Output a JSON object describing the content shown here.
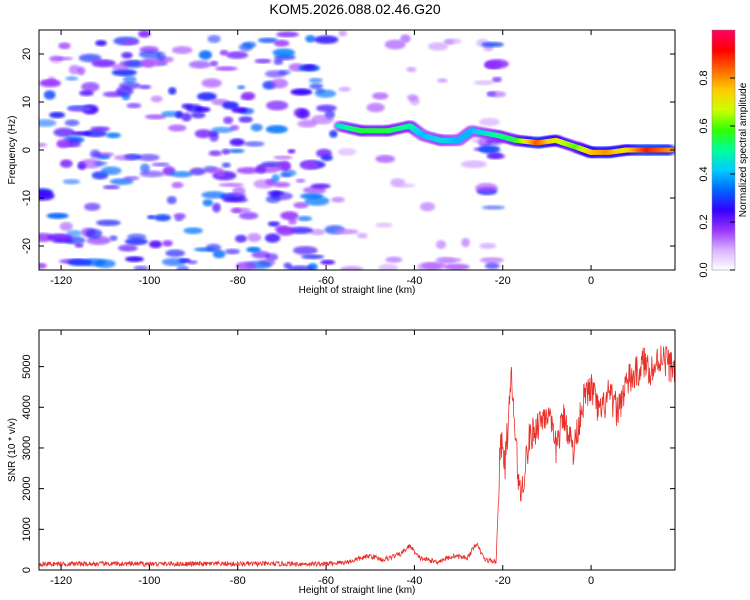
{
  "title": "KOM5.2026.088.02.46.G20",
  "chart_data": [
    {
      "type": "heatmap",
      "xlabel": "Height of straight line (km)",
      "ylabel": "Frequency (Hz)",
      "xlim": [
        -125,
        19
      ],
      "ylim": [
        -25,
        25
      ],
      "xticks": [
        "-120",
        "-100",
        "-80",
        "-60",
        "-40",
        "-20",
        "0"
      ],
      "yticks": [
        "-20",
        "-10",
        "0",
        "10",
        "20"
      ],
      "colorbar": {
        "label": "Normalized spectral amplitude",
        "range": [
          0,
          1
        ],
        "ticks": [
          "0.0",
          "0.2",
          "0.4",
          "0.6",
          "0.8"
        ],
        "colors": [
          "#ffffff",
          "#d9b3ff",
          "#9933ff",
          "#3300ff",
          "#0066ff",
          "#00ccff",
          "#00ff99",
          "#33ff00",
          "#ccff00",
          "#ffcc00",
          "#ff6600",
          "#ff0000",
          "#ff0066"
        ]
      },
      "signal_track": [
        {
          "x": -57,
          "y": 5,
          "v": 0.45
        },
        {
          "x": -52,
          "y": 4,
          "v": 0.55
        },
        {
          "x": -46,
          "y": 4,
          "v": 0.55
        },
        {
          "x": -41,
          "y": 5,
          "v": 0.5
        },
        {
          "x": -38,
          "y": 3,
          "v": 0.4
        },
        {
          "x": -34,
          "y": 2,
          "v": 0.45
        },
        {
          "x": -30,
          "y": 2,
          "v": 0.4
        },
        {
          "x": -27,
          "y": 4,
          "v": 0.4
        },
        {
          "x": -21,
          "y": 3,
          "v": 0.5
        },
        {
          "x": -17,
          "y": 2,
          "v": 0.55
        },
        {
          "x": -12,
          "y": 1.5,
          "v": 0.85
        },
        {
          "x": -8,
          "y": 2,
          "v": 0.7
        },
        {
          "x": -3,
          "y": 0.5,
          "v": 0.6
        },
        {
          "x": 0,
          "y": -0.5,
          "v": 0.75
        },
        {
          "x": 4,
          "y": -0.5,
          "v": 0.8
        },
        {
          "x": 8,
          "y": 0,
          "v": 0.7
        },
        {
          "x": 13,
          "y": 0,
          "v": 0.9
        },
        {
          "x": 18,
          "y": 0,
          "v": 0.8
        }
      ]
    },
    {
      "type": "line",
      "xlabel": "Height of straight line (km)",
      "ylabel": "SNR (10 * v/v)",
      "xlim": [
        -125,
        19
      ],
      "ylim": [
        0,
        5900
      ],
      "xticks": [
        "-120",
        "-100",
        "-80",
        "-60",
        "-40",
        "-20",
        "0"
      ],
      "yticks": [
        "0",
        "1000",
        "2000",
        "3000",
        "4000",
        "5000"
      ],
      "color": "#e8302a",
      "series": [
        {
          "x": -125,
          "y": 150
        },
        {
          "x": -60,
          "y": 150
        },
        {
          "x": -55,
          "y": 200
        },
        {
          "x": -50,
          "y": 350
        },
        {
          "x": -47,
          "y": 250
        },
        {
          "x": -43,
          "y": 400
        },
        {
          "x": -41,
          "y": 600
        },
        {
          "x": -39,
          "y": 300
        },
        {
          "x": -35,
          "y": 200
        },
        {
          "x": -31,
          "y": 350
        },
        {
          "x": -28,
          "y": 300
        },
        {
          "x": -26,
          "y": 650
        },
        {
          "x": -24,
          "y": 250
        },
        {
          "x": -21.5,
          "y": 200
        },
        {
          "x": -20.5,
          "y": 3200
        },
        {
          "x": -19.5,
          "y": 2600
        },
        {
          "x": -18,
          "y": 4700
        },
        {
          "x": -17,
          "y": 3000
        },
        {
          "x": -16,
          "y": 1800
        },
        {
          "x": -14,
          "y": 3200
        },
        {
          "x": -12,
          "y": 3600
        },
        {
          "x": -10,
          "y": 3900
        },
        {
          "x": -8,
          "y": 3000
        },
        {
          "x": -6,
          "y": 3800
        },
        {
          "x": -4,
          "y": 2900
        },
        {
          "x": -2,
          "y": 4100
        },
        {
          "x": 0,
          "y": 4500
        },
        {
          "x": 2,
          "y": 3800
        },
        {
          "x": 4,
          "y": 4300
        },
        {
          "x": 6,
          "y": 3900
        },
        {
          "x": 8,
          "y": 4600
        },
        {
          "x": 10,
          "y": 4800
        },
        {
          "x": 12,
          "y": 5100
        },
        {
          "x": 14,
          "y": 4900
        },
        {
          "x": 16,
          "y": 5300
        },
        {
          "x": 18,
          "y": 5000
        }
      ]
    }
  ]
}
